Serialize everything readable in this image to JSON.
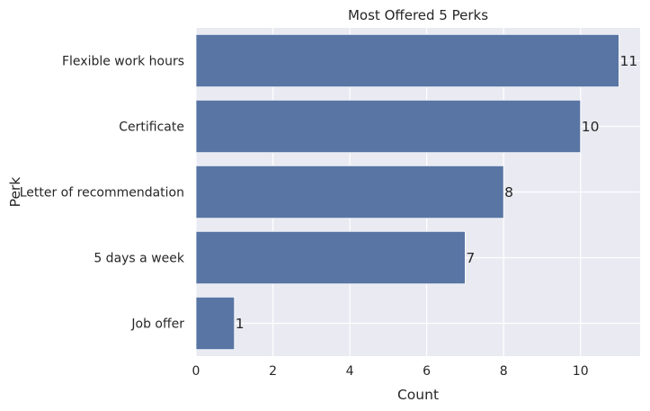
{
  "chart_data": {
    "type": "bar",
    "orientation": "horizontal",
    "title": "Most Offered 5 Perks",
    "xlabel": "Count",
    "ylabel": "Perk",
    "categories": [
      "Flexible work hours",
      "Certificate",
      "Letter of recommendation",
      "5 days a week",
      "Job offer"
    ],
    "values": [
      11,
      10,
      8,
      7,
      1
    ],
    "xlim": [
      0,
      11.55
    ],
    "xticks": [
      0,
      2,
      4,
      6,
      8,
      10
    ],
    "grid": true,
    "bar_color": "#5875a4",
    "background_color": "#eaeaf2"
  }
}
